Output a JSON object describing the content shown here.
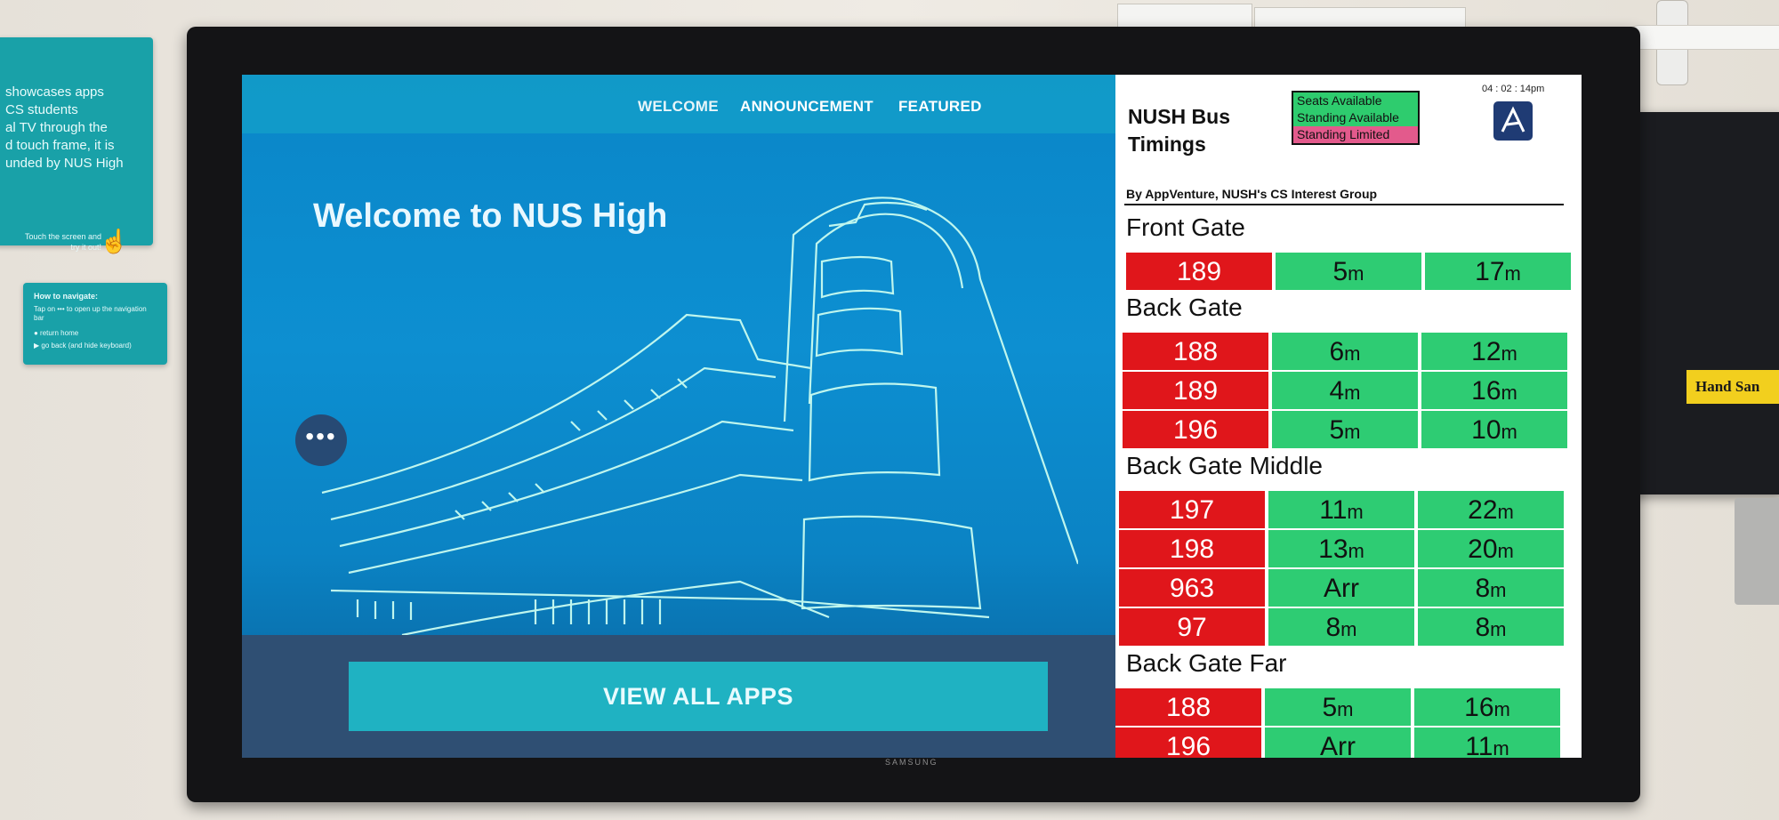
{
  "wall": {
    "poster1_text": "showcases apps\nCS students\nal TV through the\nd touch frame, it is\nunded by NUS High",
    "poster1_hint": "Touch the screen and try it out!",
    "poster2_title": "How to navigate:",
    "poster2_step1": "Tap on ••• to open up the navigation bar",
    "poster2_step2": "● return home",
    "poster2_step3": "▶ go back (and hide keyboard)",
    "dispenser_label": "Hand San",
    "tv_brand": "SAMSUNG"
  },
  "kiosk": {
    "nav": [
      "WELCOME",
      "ANNOUNCEMENT",
      "FEATURED"
    ],
    "welcome_text": "Welcome to NUS High",
    "menu_glyph": "•••",
    "view_all_label": "VIEW ALL APPS"
  },
  "bus": {
    "title": "NUSH Bus Timings",
    "legend": [
      {
        "label": "Seats Available",
        "color": "#2ecc6e"
      },
      {
        "label": "Standing Available",
        "color": "#2ecc6e"
      },
      {
        "label": "Standing Limited",
        "color": "#e35a8c"
      }
    ],
    "clock": "04 : 02 : 14pm",
    "byline": "By AppVenture, NUSH's CS Interest Group",
    "route_color": "#e0161b",
    "time_color": "#2ecc73",
    "sections": [
      {
        "name": "Front Gate",
        "rows": [
          {
            "route": "189",
            "t1": "5",
            "t1_unit": "m",
            "t2": "17",
            "t2_unit": "m"
          }
        ]
      },
      {
        "name": "Back Gate",
        "rows": [
          {
            "route": "188",
            "t1": "6",
            "t1_unit": "m",
            "t2": "12",
            "t2_unit": "m"
          },
          {
            "route": "189",
            "t1": "4",
            "t1_unit": "m",
            "t2": "16",
            "t2_unit": "m"
          },
          {
            "route": "196",
            "t1": "5",
            "t1_unit": "m",
            "t2": "10",
            "t2_unit": "m"
          }
        ]
      },
      {
        "name": "Back Gate Middle",
        "rows": [
          {
            "route": "197",
            "t1": "11",
            "t1_unit": "m",
            "t2": "22",
            "t2_unit": "m"
          },
          {
            "route": "198",
            "t1": "13",
            "t1_unit": "m",
            "t2": "20",
            "t2_unit": "m"
          },
          {
            "route": "963",
            "t1": "Arr",
            "t1_unit": "",
            "t2": "8",
            "t2_unit": "m"
          },
          {
            "route": "97",
            "t1": "8",
            "t1_unit": "m",
            "t2": "8",
            "t2_unit": "m"
          }
        ]
      },
      {
        "name": "Back Gate Far",
        "rows": [
          {
            "route": "188",
            "t1": "5",
            "t1_unit": "m",
            "t2": "16",
            "t2_unit": "m"
          },
          {
            "route": "196",
            "t1": "Arr",
            "t1_unit": "",
            "t2": "11",
            "t2_unit": "m"
          }
        ]
      }
    ]
  }
}
